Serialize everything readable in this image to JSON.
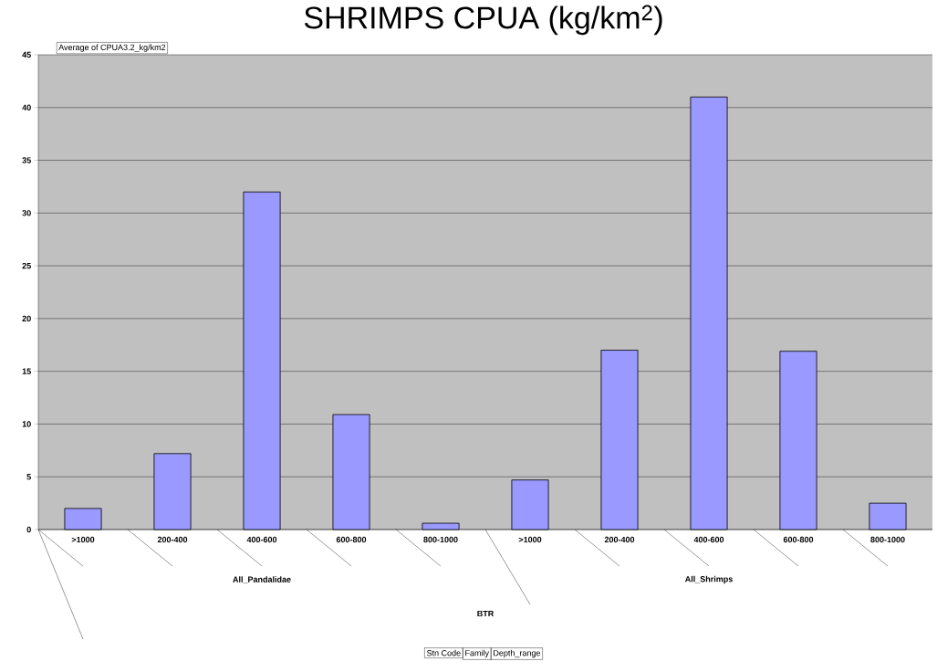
{
  "chart_data": {
    "type": "bar",
    "title": "SHRIMPS CPUA (kg/km$^{2}$)",
    "ylabel": "Average of CPUA3.2_kg/km2",
    "categories": [
      ">1000",
      "200-400",
      "400-600",
      "600-800",
      "800-1000",
      ">1000",
      "200-400",
      "400-600",
      "600-800",
      "800-1000"
    ],
    "values": [
      2.0,
      7.2,
      32.0,
      10.9,
      0.6,
      4.7,
      17.0,
      41.0,
      16.9,
      2.5
    ],
    "color": "#9999ff",
    "ylim": [
      0,
      45
    ],
    "yticks": [
      0,
      5,
      10,
      15,
      20,
      25,
      30,
      35,
      40,
      45
    ],
    "grid": "y",
    "annotations": [
      "All_Pandalidae",
      "All_Shrimps",
      "BTR",
      "Stn Code",
      "Family",
      "Depth_range"
    ]
  }
}
